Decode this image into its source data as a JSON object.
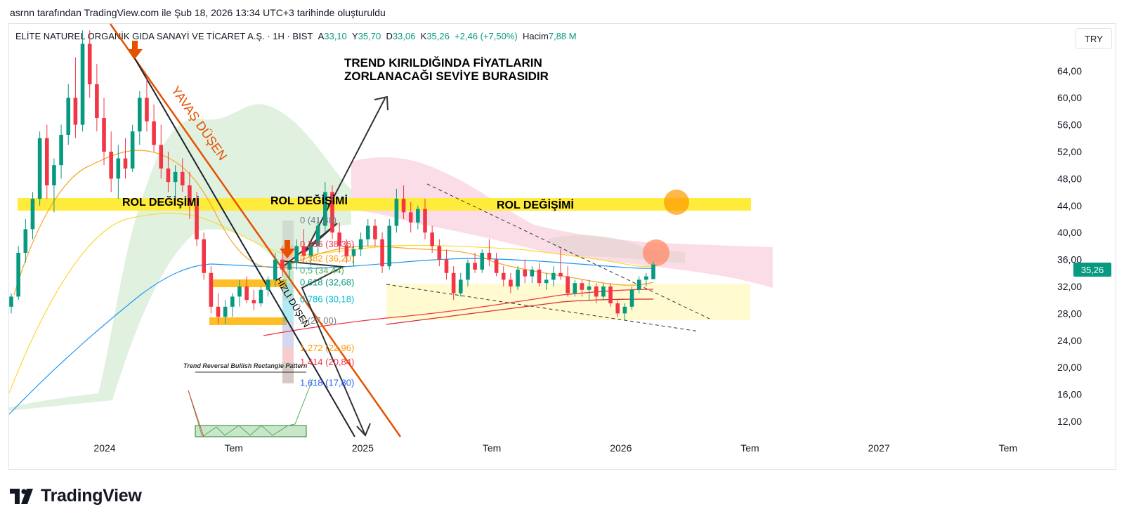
{
  "caption": "asrnn tarafından TradingView.com ile Şub 18, 2026 13:34 UTC+3 tarihinde oluşturuldu",
  "legend": {
    "symbol": "ELİTE NATUREL ORGANİK GIDA SANAYİ VE TİCARET A.Ş. · 1H · BIST",
    "open_label": "A",
    "open": "33,10",
    "high_label": "Y",
    "high": "35,70",
    "low_label": "D",
    "low": "33,06",
    "close_label": "K",
    "close": "35,26",
    "change": "+2,46 (+7,50%)",
    "volume_label": "Hacim",
    "volume": "7,88 M"
  },
  "currency": "TRY",
  "current_price": "35,26",
  "logo_text": "TradingView",
  "annotations": {
    "headline_1": "TREND KIRILDIĞINDA FİYATLARIN",
    "headline_2": "ZORLANACAĞI SEVİYE BURASIDIR",
    "rol_1": "ROL DEĞİŞİMİ",
    "rol_2": "ROL DEĞİŞİMİ",
    "rol_3": "ROL DEĞİŞİMİ",
    "slow_down": "YAVAŞ DÜŞEN",
    "fast_down": "HIZLI DÜŞEN",
    "pattern": "Trend Reversal Bullish Rectangle Pattern"
  },
  "fib_labels": [
    "0 (41,88)",
    "0,236 (38,36)",
    "0,382 (36,20)",
    "0,5 (34,44)",
    "0,618 (32,68)",
    "0,786 (30,18)",
    "1 (27,00)",
    "1,272 (22,96)",
    "1,414 (20,84)",
    "1,618 (17,80)"
  ],
  "colors": {
    "up": "#089981",
    "down": "#f23645",
    "yellow_band": "#ffeb3b",
    "orange_line": "#e65100",
    "ma_blue": "#2196f3",
    "ma_orange": "#f5a623",
    "ma_red": "#f23645"
  },
  "chart_data": {
    "type": "candlestick",
    "interval": "1H",
    "x_ticks": [
      "2024",
      "Tem",
      "2025",
      "Tem",
      "2026",
      "Tem",
      "2027",
      "Tem"
    ],
    "y_ticks": [
      "64,00",
      "60,00",
      "56,00",
      "52,00",
      "48,00",
      "44,00",
      "40,00",
      "36,00",
      "32,00",
      "28,00",
      "24,00",
      "20,00",
      "16,00",
      "12,00"
    ],
    "ylim": [
      9,
      70
    ],
    "scale": "linear",
    "last_close": 35.26,
    "horizontal_zones": [
      {
        "label": "ROL DEĞİŞİMİ",
        "from": 43.9,
        "to": 45.7
      },
      {
        "from": 26.9,
        "to": 32.6
      }
    ],
    "fibonacci": [
      {
        "level": "0",
        "price": 41.88
      },
      {
        "level": "0,236",
        "price": 38.36
      },
      {
        "level": "0,382",
        "price": 36.2
      },
      {
        "level": "0,5",
        "price": 34.44
      },
      {
        "level": "0,618",
        "price": 32.68
      },
      {
        "level": "0,786",
        "price": 30.18
      },
      {
        "level": "1",
        "price": 27.0
      },
      {
        "level": "1,272",
        "price": 22.96
      },
      {
        "level": "1,414",
        "price": 20.84
      },
      {
        "level": "1,618",
        "price": 17.8
      }
    ],
    "candles": [
      [
        29.0,
        31.0,
        28.0,
        30.5
      ],
      [
        30.5,
        38.0,
        30.0,
        37.0
      ],
      [
        37.0,
        42.0,
        35.5,
        40.5
      ],
      [
        40.5,
        46.0,
        39.0,
        45.0
      ],
      [
        45.0,
        55.0,
        44.0,
        54.0
      ],
      [
        54.0,
        56.0,
        45.0,
        47.0
      ],
      [
        47.0,
        51.0,
        43.0,
        50.0
      ],
      [
        50.0,
        56.0,
        48.0,
        54.5
      ],
      [
        54.5,
        62.0,
        53.0,
        60.0
      ],
      [
        60.0,
        66.0,
        54.0,
        56.0
      ],
      [
        56.0,
        70.0,
        55.0,
        68.0
      ],
      [
        68.0,
        70.0,
        60.0,
        62.0
      ],
      [
        62.0,
        65.0,
        55.0,
        57.0
      ],
      [
        57.0,
        60.0,
        50.0,
        52.0
      ],
      [
        52.0,
        55.0,
        46.0,
        48.0
      ],
      [
        48.0,
        53.0,
        45.0,
        51.0
      ],
      [
        51.0,
        54.0,
        48.0,
        49.5
      ],
      [
        49.5,
        56.0,
        49.0,
        55.0
      ],
      [
        55.0,
        61.0,
        53.0,
        60.0
      ],
      [
        60.0,
        63.0,
        55.0,
        56.5
      ],
      [
        56.5,
        59.0,
        52.0,
        53.0
      ],
      [
        53.0,
        56.0,
        48.0,
        49.5
      ],
      [
        49.5,
        52.0,
        46.0,
        47.5
      ],
      [
        47.5,
        50.0,
        45.0,
        49.0
      ],
      [
        49.0,
        51.0,
        46.0,
        47.0
      ],
      [
        47.0,
        49.0,
        42.0,
        44.0
      ],
      [
        44.0,
        46.0,
        38.0,
        39.0
      ],
      [
        39.0,
        40.0,
        33.0,
        34.0
      ],
      [
        34.0,
        35.0,
        28.0,
        29.0
      ],
      [
        29.0,
        31.0,
        26.5,
        27.5
      ],
      [
        27.5,
        30.0,
        26.5,
        29.0
      ],
      [
        29.0,
        31.0,
        27.5,
        30.5
      ],
      [
        30.5,
        33.0,
        29.0,
        32.0
      ],
      [
        32.0,
        33.5,
        29.5,
        30.0
      ],
      [
        30.0,
        31.5,
        28.5,
        29.5
      ],
      [
        29.5,
        32.0,
        29.0,
        31.5
      ],
      [
        31.5,
        33.5,
        30.5,
        33.0
      ],
      [
        33.0,
        37.0,
        32.0,
        36.0
      ],
      [
        36.0,
        38.0,
        33.5,
        34.5
      ],
      [
        34.5,
        36.0,
        33.0,
        35.5
      ],
      [
        35.5,
        39.0,
        34.5,
        38.0
      ],
      [
        38.0,
        40.5,
        35.5,
        36.5
      ],
      [
        36.5,
        38.5,
        35.0,
        38.0
      ],
      [
        38.0,
        42.0,
        37.0,
        41.0
      ],
      [
        41.0,
        47.5,
        40.0,
        46.0
      ],
      [
        46.0,
        47.0,
        39.0,
        40.0
      ],
      [
        40.0,
        41.5,
        37.0,
        38.0
      ],
      [
        38.0,
        39.0,
        35.5,
        36.5
      ],
      [
        36.5,
        38.0,
        35.0,
        37.5
      ],
      [
        37.5,
        40.0,
        36.5,
        39.0
      ],
      [
        39.0,
        42.0,
        38.0,
        41.0
      ],
      [
        41.0,
        42.0,
        38.0,
        39.0
      ],
      [
        39.0,
        40.0,
        34.0,
        35.0
      ],
      [
        35.0,
        42.0,
        34.5,
        41.0
      ],
      [
        41.0,
        46.5,
        40.0,
        45.0
      ],
      [
        45.0,
        47.0,
        42.0,
        43.0
      ],
      [
        43.0,
        44.5,
        40.0,
        41.5
      ],
      [
        41.5,
        44.0,
        40.5,
        43.5
      ],
      [
        43.5,
        45.0,
        39.0,
        40.0
      ],
      [
        40.0,
        41.0,
        37.0,
        38.0
      ],
      [
        38.0,
        39.0,
        35.0,
        36.0
      ],
      [
        36.0,
        37.5,
        33.0,
        34.0
      ],
      [
        34.0,
        35.0,
        30.0,
        31.0
      ],
      [
        31.0,
        34.0,
        30.5,
        33.0
      ],
      [
        33.0,
        36.0,
        32.0,
        35.5
      ],
      [
        35.5,
        37.0,
        34.0,
        34.5
      ],
      [
        34.5,
        37.5,
        34.0,
        37.0
      ],
      [
        37.0,
        39.0,
        35.0,
        36.0
      ],
      [
        36.0,
        37.0,
        33.5,
        34.0
      ],
      [
        34.0,
        35.0,
        32.0,
        33.0
      ],
      [
        33.0,
        34.0,
        31.0,
        32.0
      ],
      [
        32.0,
        35.0,
        31.5,
        34.5
      ],
      [
        34.5,
        36.0,
        32.5,
        33.5
      ],
      [
        33.5,
        35.0,
        32.5,
        34.5
      ],
      [
        34.5,
        35.5,
        32.0,
        32.5
      ],
      [
        32.5,
        34.0,
        31.5,
        33.0
      ],
      [
        33.0,
        35.0,
        32.0,
        34.0
      ],
      [
        34.0,
        37.5,
        33.0,
        33.5
      ],
      [
        33.5,
        35.0,
        30.5,
        31.0
      ],
      [
        31.0,
        33.0,
        30.5,
        32.5
      ],
      [
        32.5,
        33.0,
        30.5,
        31.5
      ],
      [
        31.5,
        33.0,
        30.0,
        32.0
      ],
      [
        32.0,
        32.5,
        29.5,
        30.5
      ],
      [
        30.5,
        32.5,
        30.0,
        32.0
      ],
      [
        32.0,
        32.5,
        29.0,
        29.5
      ],
      [
        29.5,
        30.0,
        27.5,
        28.0
      ],
      [
        28.0,
        29.5,
        27.0,
        29.0
      ],
      [
        29.0,
        32.0,
        28.5,
        31.5
      ],
      [
        31.5,
        33.5,
        31.0,
        33.0
      ],
      [
        33.0,
        34.0,
        32.0,
        33.5
      ],
      [
        33.1,
        35.7,
        33.06,
        35.26
      ]
    ]
  }
}
